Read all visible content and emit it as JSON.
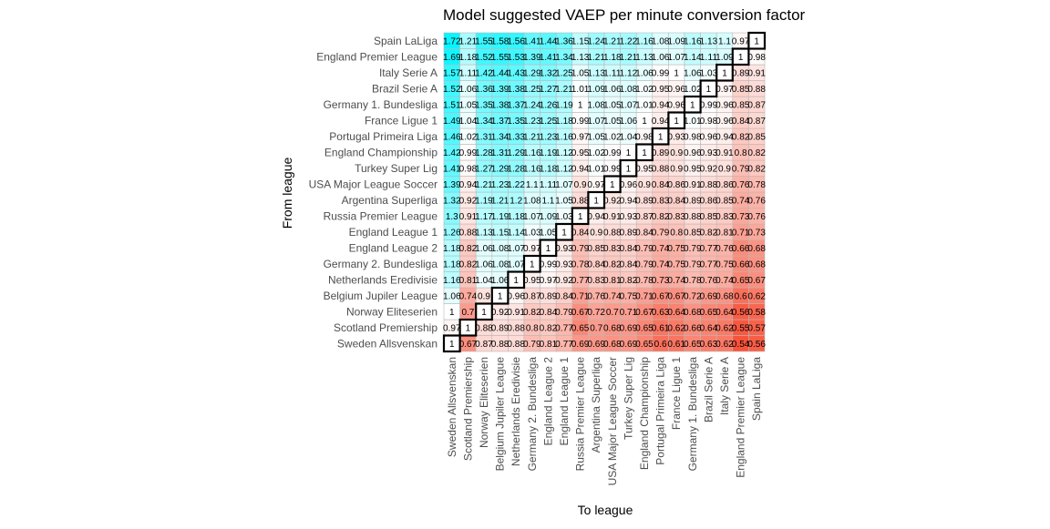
{
  "chart_data": {
    "type": "heatmap",
    "title": "Model suggested VAEP per minute conversion factor",
    "xlabel": "To league",
    "ylabel": "From league",
    "leagues": [
      "Sweden Allsvenskan",
      "Scotland Premiership",
      "Norway Eliteserien",
      "Belgium Jupiler League",
      "Netherlands Eredivisie",
      "Germany 2. Bundesliga",
      "England League 2",
      "England League 1",
      "Russia Premier League",
      "Argentina Superliga",
      "USA Major League Soccer",
      "Turkey Super Lig",
      "England Championship",
      "Portugal Primeira Liga",
      "France Ligue 1",
      "Germany 1. Bundesliga",
      "Brazil Serie A",
      "Italy Serie A",
      "England Premier League",
      "Spain LaLiga"
    ],
    "matrix": [
      [
        "1",
        "0.67",
        "0.87",
        "0.88",
        "0.88",
        "0.79",
        "0.81",
        "0.77",
        "0.69",
        "0.69",
        "0.68",
        "0.69",
        "0.65",
        "0.6",
        "0.61",
        "0.65",
        "0.63",
        "0.62",
        "0.54",
        "0.56"
      ],
      [
        "0.97",
        "1",
        "0.88",
        "0.89",
        "0.88",
        "0.8",
        "0.82",
        "0.77",
        "0.65",
        "0.7",
        "0.68",
        "0.69",
        "0.65",
        "0.61",
        "0.62",
        "0.66",
        "0.64",
        "0.62",
        "0.55",
        "0.57"
      ],
      [
        "1",
        "0.7",
        "1",
        "0.92",
        "0.91",
        "0.82",
        "0.84",
        "0.79",
        "0.67",
        "0.72",
        "0.7",
        "0.71",
        "0.67",
        "0.63",
        "0.64",
        "0.68",
        "0.65",
        "0.64",
        "0.56",
        "0.58"
      ],
      [
        "1.06",
        "0.74",
        "0.9",
        "1",
        "0.96",
        "0.87",
        "0.89",
        "0.84",
        "0.71",
        "0.76",
        "0.74",
        "0.75",
        "0.71",
        "0.67",
        "0.67",
        "0.72",
        "0.69",
        "0.68",
        "0.6",
        "0.62"
      ],
      [
        "1.16",
        "0.81",
        "1.04",
        "1.06",
        "1",
        "0.95",
        "0.97",
        "0.92",
        "0.77",
        "0.83",
        "0.81",
        "0.82",
        "0.78",
        "0.73",
        "0.74",
        "0.78",
        "0.76",
        "0.74",
        "0.65",
        "0.67"
      ],
      [
        "1.18",
        "0.82",
        "1.06",
        "1.08",
        "1.07",
        "1",
        "0.99",
        "0.93",
        "0.78",
        "0.84",
        "0.82",
        "0.84",
        "0.79",
        "0.74",
        "0.75",
        "0.79",
        "0.77",
        "0.75",
        "0.66",
        "0.68"
      ],
      [
        "1.18",
        "0.82",
        "1.06",
        "1.08",
        "1.07",
        "0.97",
        "1",
        "0.93",
        "0.79",
        "0.85",
        "0.83",
        "0.84",
        "0.79",
        "0.74",
        "0.75",
        "0.79",
        "0.77",
        "0.76",
        "0.66",
        "0.68"
      ],
      [
        "1.26",
        "0.88",
        "1.13",
        "1.15",
        "1.14",
        "1.03",
        "1.05",
        "1",
        "0.84",
        "0.9",
        "0.88",
        "0.89",
        "0.84",
        "0.79",
        "0.8",
        "0.85",
        "0.82",
        "0.81",
        "0.71",
        "0.73"
      ],
      [
        "1.3",
        "0.91",
        "1.17",
        "1.19",
        "1.18",
        "1.07",
        "1.09",
        "1.03",
        "1",
        "0.94",
        "0.91",
        "0.93",
        "0.87",
        "0.82",
        "0.83",
        "0.88",
        "0.85",
        "0.83",
        "0.73",
        "0.76"
      ],
      [
        "1.32",
        "0.92",
        "1.19",
        "1.21",
        "1.2",
        "1.08",
        "1.1",
        "1.05",
        "0.88",
        "1",
        "0.92",
        "0.94",
        "0.89",
        "0.83",
        "0.84",
        "0.89",
        "0.86",
        "0.85",
        "0.74",
        "0.76"
      ],
      [
        "1.39",
        "0.94",
        "1.21",
        "1.23",
        "1.22",
        "1.1",
        "1.11",
        "1.07",
        "0.9",
        "0.97",
        "1",
        "0.96",
        "0.9",
        "0.84",
        "0.86",
        "0.91",
        "0.88",
        "0.86",
        "0.76",
        "0.78"
      ],
      [
        "1.41",
        "0.98",
        "1.27",
        "1.29",
        "1.28",
        "1.16",
        "1.18",
        "1.12",
        "0.94",
        "1.01",
        "0.99",
        "1",
        "0.95",
        "0.88",
        "0.9",
        "0.95",
        "0.92",
        "0.9",
        "0.79",
        "0.82"
      ],
      [
        "1.42",
        "0.99",
        "1.28",
        "1.31",
        "1.29",
        "1.16",
        "1.19",
        "1.12",
        "0.95",
        "1.02",
        "0.99",
        "1",
        "1",
        "0.89",
        "0.9",
        "0.96",
        "0.93",
        "0.91",
        "0.8",
        "0.82"
      ],
      [
        "1.46",
        "1.02",
        "1.31",
        "1.34",
        "1.33",
        "1.21",
        "1.23",
        "1.16",
        "0.97",
        "1.05",
        "1.02",
        "1.04",
        "0.98",
        "1",
        "0.93",
        "0.98",
        "0.96",
        "0.94",
        "0.82",
        "0.85"
      ],
      [
        "1.49",
        "1.04",
        "1.34",
        "1.37",
        "1.35",
        "1.23",
        "1.25",
        "1.18",
        "0.99",
        "1.07",
        "1.05",
        "1.06",
        "1",
        "0.94",
        "1",
        "1.01",
        "0.98",
        "0.96",
        "0.84",
        "0.87"
      ],
      [
        "1.51",
        "1.05",
        "1.35",
        "1.38",
        "1.37",
        "1.24",
        "1.26",
        "1.19",
        "1",
        "1.08",
        "1.05",
        "1.07",
        "1.01",
        "0.94",
        "0.96",
        "1",
        "0.99",
        "0.96",
        "0.85",
        "0.87"
      ],
      [
        "1.52",
        "1.06",
        "1.36",
        "1.39",
        "1.38",
        "1.25",
        "1.27",
        "1.21",
        "1.01",
        "1.09",
        "1.06",
        "1.08",
        "1.02",
        "0.95",
        "0.96",
        "1.02",
        "1",
        "0.97",
        "0.85",
        "0.88"
      ],
      [
        "1.57",
        "1.11",
        "1.42",
        "1.44",
        "1.43",
        "1.29",
        "1.32",
        "1.25",
        "1.05",
        "1.13",
        "1.11",
        "1.12",
        "1.06",
        "0.99",
        "1",
        "1.06",
        "1.03",
        "1",
        "0.89",
        "0.91"
      ],
      [
        "1.69",
        "1.18",
        "1.52",
        "1.55",
        "1.53",
        "1.39",
        "1.41",
        "1.34",
        "1.13",
        "1.21",
        "1.18",
        "1.21",
        "1.13",
        "1.06",
        "1.07",
        "1.14",
        "1.11",
        "1.09",
        "1",
        "0.98"
      ],
      [
        "1.72",
        "1.21",
        "1.55",
        "1.58",
        "1.56",
        "1.41",
        "1.44",
        "1.36",
        "1.15",
        "1.24",
        "1.21",
        "1.22",
        "1.16",
        "1.08",
        "1.09",
        "1.16",
        "1.13",
        "1.1",
        "0.97",
        "1"
      ]
    ],
    "diagonal_outline": "on",
    "legend": "none",
    "colors": {
      "high": "#00f5ff",
      "mid": "#ffffff",
      "low": "#f8533a",
      "grid": "#b8b8b8",
      "outline": "#000000"
    }
  }
}
